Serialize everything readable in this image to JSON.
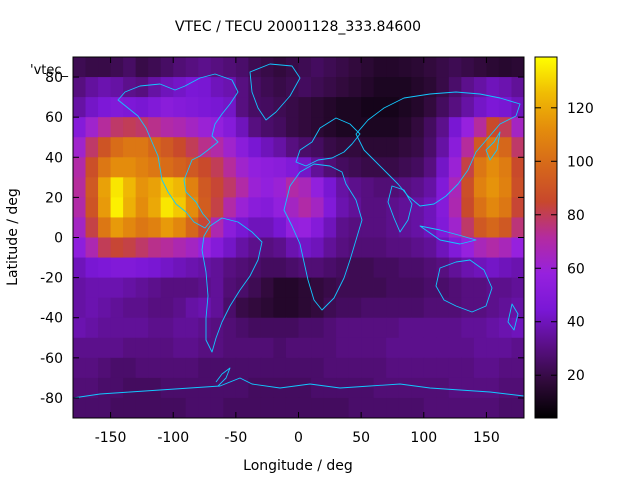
{
  "chart_data": {
    "type": "heatmap",
    "title": "VTEC / TECU 20001128_333.84600",
    "xlabel": "Longitude / deg",
    "ylabel": "Latitude / deg",
    "key_label": "'vtec_",
    "xlim": [
      -180,
      180
    ],
    "ylim": [
      -90,
      90
    ],
    "x_ticks": [
      -150,
      -100,
      -50,
      0,
      50,
      100,
      150
    ],
    "y_ticks": [
      80,
      60,
      40,
      20,
      0,
      -20,
      -40,
      -60,
      -80
    ],
    "colorbar": {
      "range": [
        4,
        139
      ],
      "ticks": [
        20,
        40,
        60,
        80,
        100,
        120
      ],
      "palette": "gnuplot-pm3d"
    },
    "grid": {
      "lon_start": -180,
      "lon_step": 10,
      "lat_start": 90,
      "lat_step": -10
    },
    "values": [
      [
        22,
        20,
        20,
        22,
        25,
        20,
        22,
        25,
        28,
        30,
        32,
        30,
        28,
        26,
        22,
        20,
        18,
        20,
        22,
        24,
        22,
        20,
        18,
        16,
        14,
        14,
        15,
        16,
        18,
        20,
        22,
        20,
        18,
        16,
        15,
        16
      ],
      [
        30,
        35,
        38,
        36,
        32,
        30,
        36,
        40,
        42,
        45,
        44,
        40,
        38,
        30,
        25,
        22,
        20,
        22,
        24,
        22,
        20,
        18,
        16,
        14,
        12,
        12,
        12,
        14,
        16,
        20,
        26,
        32,
        36,
        40,
        38,
        34
      ],
      [
        36,
        42,
        46,
        48,
        46,
        44,
        48,
        52,
        50,
        48,
        46,
        44,
        42,
        30,
        25,
        24,
        22,
        20,
        18,
        16,
        14,
        12,
        12,
        10,
        10,
        10,
        12,
        14,
        18,
        24,
        30,
        36,
        42,
        46,
        44,
        40
      ],
      [
        50,
        62,
        72,
        78,
        80,
        78,
        74,
        70,
        68,
        64,
        60,
        56,
        50,
        40,
        30,
        26,
        24,
        20,
        18,
        16,
        14,
        12,
        12,
        12,
        12,
        12,
        14,
        18,
        24,
        32,
        44,
        58,
        72,
        86,
        80,
        64
      ],
      [
        62,
        78,
        90,
        100,
        104,
        104,
        98,
        92,
        86,
        80,
        74,
        70,
        62,
        52,
        44,
        40,
        36,
        30,
        26,
        24,
        20,
        18,
        18,
        16,
        16,
        16,
        18,
        20,
        26,
        36,
        52,
        72,
        92,
        104,
        98,
        78
      ],
      [
        70,
        88,
        104,
        112,
        112,
        108,
        104,
        100,
        96,
        92,
        86,
        80,
        72,
        62,
        56,
        54,
        52,
        48,
        42,
        34,
        28,
        24,
        22,
        20,
        20,
        20,
        22,
        24,
        30,
        42,
        60,
        82,
        104,
        112,
        106,
        86
      ],
      [
        72,
        92,
        118,
        134,
        124,
        114,
        118,
        128,
        124,
        108,
        92,
        84,
        78,
        70,
        60,
        56,
        60,
        70,
        66,
        56,
        44,
        36,
        32,
        30,
        28,
        28,
        30,
        32,
        36,
        48,
        66,
        88,
        108,
        114,
        108,
        88
      ],
      [
        70,
        90,
        116,
        136,
        122,
        112,
        120,
        134,
        128,
        112,
        94,
        82,
        70,
        60,
        52,
        50,
        56,
        64,
        70,
        64,
        48,
        38,
        34,
        30,
        30,
        32,
        34,
        36,
        40,
        50,
        68,
        86,
        102,
        110,
        104,
        84
      ],
      [
        64,
        82,
        104,
        116,
        110,
        104,
        108,
        116,
        110,
        98,
        84,
        68,
        52,
        44,
        40,
        40,
        44,
        56,
        58,
        50,
        40,
        32,
        30,
        30,
        30,
        32,
        34,
        36,
        40,
        48,
        62,
        78,
        92,
        98,
        92,
        76
      ],
      [
        54,
        68,
        80,
        84,
        82,
        78,
        74,
        72,
        68,
        64,
        58,
        50,
        42,
        36,
        32,
        30,
        32,
        38,
        42,
        40,
        34,
        30,
        28,
        28,
        28,
        30,
        30,
        32,
        34,
        40,
        48,
        58,
        66,
        70,
        66,
        58
      ],
      [
        40,
        44,
        46,
        48,
        48,
        46,
        44,
        42,
        40,
        38,
        36,
        34,
        30,
        28,
        26,
        24,
        24,
        26,
        28,
        28,
        26,
        24,
        22,
        22,
        24,
        24,
        26,
        26,
        28,
        30,
        34,
        38,
        40,
        42,
        40,
        38
      ],
      [
        36,
        38,
        38,
        38,
        36,
        34,
        32,
        30,
        30,
        30,
        32,
        34,
        28,
        26,
        22,
        18,
        14,
        14,
        16,
        18,
        20,
        22,
        22,
        22,
        22,
        24,
        24,
        24,
        26,
        26,
        28,
        30,
        30,
        32,
        32,
        34
      ],
      [
        36,
        38,
        36,
        34,
        32,
        32,
        30,
        30,
        32,
        36,
        38,
        34,
        26,
        20,
        18,
        16,
        14,
        14,
        16,
        18,
        22,
        24,
        24,
        26,
        26,
        26,
        26,
        26,
        28,
        28,
        28,
        30,
        30,
        32,
        34,
        36
      ],
      [
        38,
        36,
        34,
        34,
        34,
        34,
        32,
        32,
        34,
        34,
        32,
        30,
        28,
        26,
        24,
        24,
        24,
        24,
        26,
        26,
        28,
        30,
        30,
        30,
        30,
        30,
        32,
        32,
        32,
        32,
        32,
        34,
        34,
        36,
        38,
        40
      ],
      [
        32,
        32,
        32,
        32,
        30,
        30,
        30,
        30,
        32,
        32,
        30,
        30,
        28,
        28,
        28,
        28,
        26,
        28,
        28,
        28,
        28,
        30,
        30,
        30,
        30,
        32,
        32,
        32,
        32,
        32,
        32,
        32,
        34,
        34,
        34,
        32
      ],
      [
        30,
        30,
        28,
        26,
        26,
        28,
        28,
        28,
        28,
        28,
        26,
        26,
        26,
        26,
        26,
        26,
        26,
        26,
        26,
        26,
        28,
        28,
        28,
        28,
        28,
        30,
        30,
        30,
        30,
        30,
        30,
        30,
        32,
        32,
        30,
        30
      ],
      [
        28,
        28,
        26,
        26,
        24,
        24,
        24,
        26,
        26,
        26,
        26,
        26,
        26,
        26,
        24,
        24,
        24,
        24,
        24,
        26,
        26,
        26,
        26,
        26,
        28,
        28,
        28,
        28,
        28,
        28,
        30,
        30,
        30,
        30,
        28,
        28
      ],
      [
        26,
        26,
        26,
        24,
        24,
        24,
        24,
        24,
        24,
        26,
        26,
        26,
        24,
        24,
        24,
        24,
        24,
        24,
        24,
        24,
        24,
        24,
        26,
        26,
        26,
        26,
        26,
        26,
        28,
        28,
        28,
        28,
        28,
        28,
        26,
        26
      ]
    ]
  }
}
